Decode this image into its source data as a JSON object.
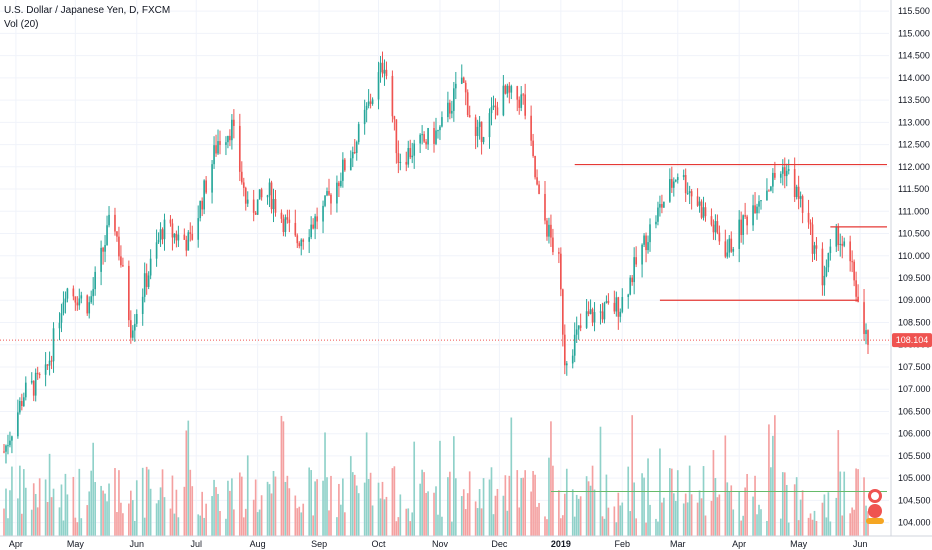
{
  "window": {
    "title": "U.S. Dollar / Japanese Yen, D, FXCM",
    "indicator": "Vol (20)"
  },
  "price_axis": {
    "ticks": [
      "115.500",
      "115.000",
      "114.500",
      "114.000",
      "113.500",
      "113.000",
      "112.500",
      "112.000",
      "111.500",
      "111.000",
      "110.500",
      "110.000",
      "109.500",
      "109.000",
      "108.500",
      "108.000",
      "107.500",
      "107.000",
      "106.500",
      "106.000",
      "105.500",
      "105.000",
      "104.500",
      "104.000"
    ],
    "current_price": "108.104",
    "current_color": "#ef5350"
  },
  "time_axis": {
    "labels": [
      "Apr",
      "May",
      "Jun",
      "Jul",
      "Aug",
      "Sep",
      "Oct",
      "Nov",
      "Dec",
      "2019",
      "Feb",
      "Mar",
      "Apr",
      "May",
      "Jun"
    ]
  },
  "colors": {
    "up": "#26a69a",
    "down": "#ef5350",
    "vol_up": "#8fd1c9",
    "vol_down": "#f4a0a0",
    "level_line": "#e53935",
    "volume_level": "#66bb6a",
    "grid": "#f0f3fa"
  },
  "chart_data": {
    "type": "candlestick",
    "title": "U.S. Dollar / Japanese Yen, D, FXCM",
    "indicator": "Vol (20)",
    "x_range": [
      "2018-03-26",
      "2019-06-05"
    ],
    "ylim": [
      103.7,
      115.75
    ],
    "close_path": [
      {
        "date": "2018-03-26",
        "close": 105.6
      },
      {
        "date": "2018-04-05",
        "close": 106.9
      },
      {
        "date": "2018-04-16",
        "close": 107.3
      },
      {
        "date": "2018-04-26",
        "close": 109.3
      },
      {
        "date": "2018-05-08",
        "close": 108.9
      },
      {
        "date": "2018-05-20",
        "close": 111.0
      },
      {
        "date": "2018-05-29",
        "close": 108.4
      },
      {
        "date": "2018-06-14",
        "close": 110.6
      },
      {
        "date": "2018-06-28",
        "close": 110.3
      },
      {
        "date": "2018-07-12",
        "close": 112.6
      },
      {
        "date": "2018-07-19",
        "close": 112.9
      },
      {
        "date": "2018-07-27",
        "close": 111.0
      },
      {
        "date": "2018-08-07",
        "close": 111.4
      },
      {
        "date": "2018-08-20",
        "close": 110.3
      },
      {
        "date": "2018-09-03",
        "close": 111.0
      },
      {
        "date": "2018-09-20",
        "close": 112.6
      },
      {
        "date": "2018-10-04",
        "close": 114.4
      },
      {
        "date": "2018-10-11",
        "close": 112.2
      },
      {
        "date": "2018-10-19",
        "close": 112.4
      },
      {
        "date": "2018-11-01",
        "close": 112.8
      },
      {
        "date": "2018-11-12",
        "close": 114.0
      },
      {
        "date": "2018-11-19",
        "close": 112.6
      },
      {
        "date": "2018-12-03",
        "close": 113.6
      },
      {
        "date": "2018-12-13",
        "close": 113.5
      },
      {
        "date": "2018-12-21",
        "close": 111.2
      },
      {
        "date": "2018-12-31",
        "close": 109.8
      },
      {
        "date": "2019-01-03",
        "close": 107.7
      },
      {
        "date": "2019-01-14",
        "close": 108.6
      },
      {
        "date": "2019-01-31",
        "close": 108.9
      },
      {
        "date": "2019-02-14",
        "close": 110.5
      },
      {
        "date": "2019-03-01",
        "close": 111.9
      },
      {
        "date": "2019-03-11",
        "close": 111.2
      },
      {
        "date": "2019-03-26",
        "close": 110.1
      },
      {
        "date": "2019-04-10",
        "close": 111.3
      },
      {
        "date": "2019-04-24",
        "close": 112.0
      },
      {
        "date": "2019-05-03",
        "close": 111.1
      },
      {
        "date": "2019-05-13",
        "close": 109.5
      },
      {
        "date": "2019-05-21",
        "close": 110.5
      },
      {
        "date": "2019-05-29",
        "close": 109.5
      },
      {
        "date": "2019-06-03",
        "close": 108.1
      }
    ],
    "horizontal_levels": [
      {
        "price": 112.05,
        "from": "2019-01-08",
        "to": "2019-06-17"
      },
      {
        "price": 110.65,
        "from": "2019-05-17",
        "to": "2019-06-17"
      },
      {
        "price": 109.0,
        "from": "2019-02-20",
        "to": "2019-05-31"
      }
    ],
    "volume_level": {
      "value": 104.7,
      "from": "2018-12-27",
      "to": "2019-06-17"
    },
    "last_price": 108.104
  }
}
